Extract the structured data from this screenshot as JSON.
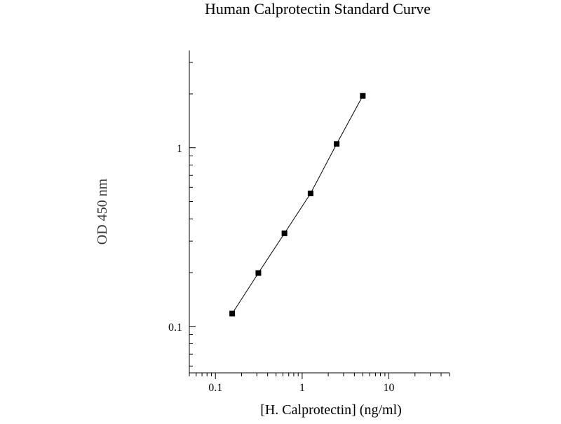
{
  "chart_data": {
    "type": "line",
    "title": "Human Calprotectin Standard Curve",
    "xlabel": "[H. Calprotectin] (ng/ml)",
    "ylabel": "OD 450 nm",
    "x_scale": "log",
    "y_scale": "log",
    "xlim": [
      0.05,
      50
    ],
    "ylim": [
      0.055,
      3.5
    ],
    "x_ticks": [
      {
        "value": 0.1,
        "label": "0.1"
      },
      {
        "value": 1,
        "label": "1"
      },
      {
        "value": 10,
        "label": "10"
      }
    ],
    "y_ticks": [
      {
        "value": 0.1,
        "label": "0.1"
      },
      {
        "value": 1,
        "label": "1"
      }
    ],
    "grid": false,
    "series": [
      {
        "marker": "square",
        "color": "#000000",
        "points": [
          {
            "x": 0.156,
            "y": 0.118
          },
          {
            "x": 0.3125,
            "y": 0.199
          },
          {
            "x": 0.625,
            "y": 0.332
          },
          {
            "x": 1.25,
            "y": 0.555
          },
          {
            "x": 2.5,
            "y": 1.05
          },
          {
            "x": 5,
            "y": 1.95
          }
        ]
      }
    ]
  }
}
